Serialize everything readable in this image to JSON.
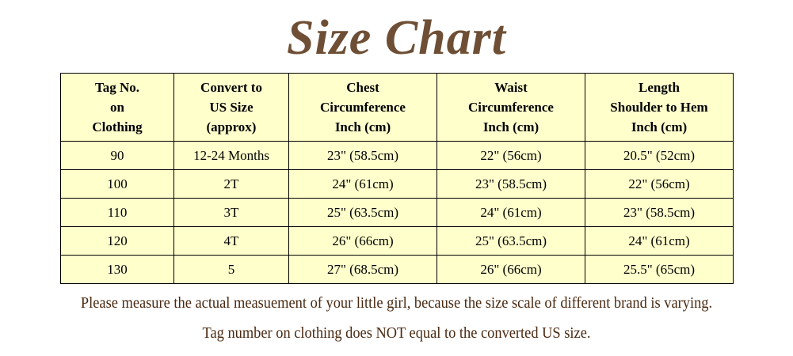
{
  "title": "Size Chart",
  "table": {
    "headers": [
      [
        "Tag No.",
        "on",
        "Clothing"
      ],
      [
        "Convert to",
        "US Size",
        "(approx)"
      ],
      [
        "Chest",
        "Circumference",
        "Inch (cm)"
      ],
      [
        "Waist",
        "Circumference",
        "Inch (cm)"
      ],
      [
        "Length",
        "Shoulder to Hem",
        "Inch (cm)"
      ]
    ],
    "rows": [
      [
        "90",
        "12-24 Months",
        "23\" (58.5cm)",
        "22\" (56cm)",
        "20.5\" (52cm)"
      ],
      [
        "100",
        "2T",
        "24\" (61cm)",
        "23\" (58.5cm)",
        "22\" (56cm)"
      ],
      [
        "110",
        "3T",
        "25\" (63.5cm)",
        "24\" (61cm)",
        "23\" (58.5cm)"
      ],
      [
        "120",
        "4T",
        "26\" (66cm)",
        "25\" (63.5cm)",
        "24\" (61cm)"
      ],
      [
        "130",
        "5",
        "27\" (68.5cm)",
        "26\" (66cm)",
        "25.5\" (65cm)"
      ]
    ]
  },
  "notes": [
    "Please measure the actual measuement of your little girl, because the size scale of different brand is varying.",
    "Tag number on clothing does NOT equal to the converted US size."
  ],
  "colors": {
    "title": "#6e4f35",
    "table_bg": "#ffffcc",
    "note": "#4a2a12"
  }
}
